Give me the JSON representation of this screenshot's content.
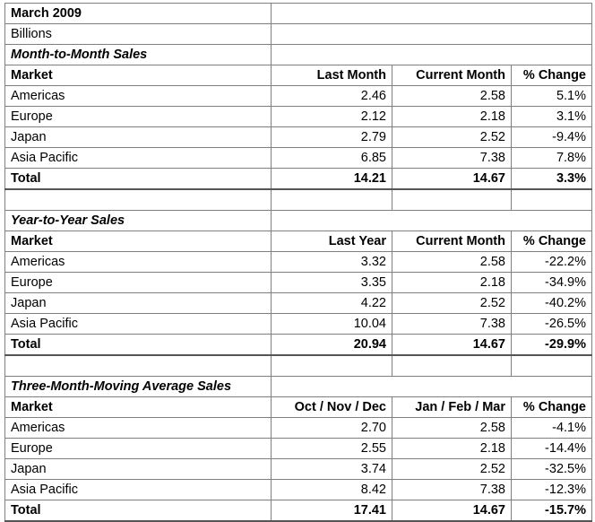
{
  "title": "March 2009",
  "units": "Billions",
  "sections": [
    {
      "title": "Month-to-Month Sales",
      "headers": [
        "Market",
        "Last Month",
        "Current Month",
        "% Change"
      ],
      "rows": [
        [
          "Americas",
          "2.46",
          "2.58",
          "5.1%"
        ],
        [
          "Europe",
          "2.12",
          "2.18",
          "3.1%"
        ],
        [
          "Japan",
          "2.79",
          "2.52",
          "-9.4%"
        ],
        [
          "Asia Pacific",
          "6.85",
          "7.38",
          "7.8%"
        ]
      ],
      "total": [
        "Total",
        "14.21",
        "14.67",
        "3.3%"
      ]
    },
    {
      "title": "Year-to-Year Sales",
      "headers": [
        "Market",
        "Last Year",
        "Current Month",
        "% Change"
      ],
      "rows": [
        [
          "Americas",
          "3.32",
          "2.58",
          "-22.2%"
        ],
        [
          "Europe",
          "3.35",
          "2.18",
          "-34.9%"
        ],
        [
          "Japan",
          "4.22",
          "2.52",
          "-40.2%"
        ],
        [
          "Asia Pacific",
          "10.04",
          "7.38",
          "-26.5%"
        ]
      ],
      "total": [
        "Total",
        "20.94",
        "14.67",
        "-29.9%"
      ]
    },
    {
      "title": "Three-Month-Moving Average Sales",
      "headers": [
        "Market",
        "Oct / Nov / Dec",
        "Jan / Feb / Mar",
        "% Change"
      ],
      "rows": [
        [
          "Americas",
          "2.70",
          "2.58",
          "-4.1%"
        ],
        [
          "Europe",
          "2.55",
          "2.18",
          "-14.4%"
        ],
        [
          "Japan",
          "3.74",
          "2.52",
          "-32.5%"
        ],
        [
          "Asia Pacific",
          "8.42",
          "7.38",
          "-12.3%"
        ]
      ],
      "total": [
        "Total",
        "17.41",
        "14.67",
        "-15.7%"
      ]
    }
  ]
}
